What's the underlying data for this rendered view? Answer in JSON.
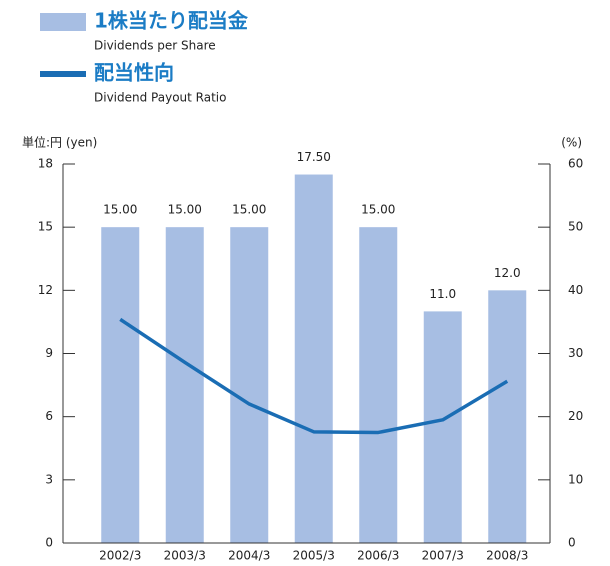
{
  "chart_data": {
    "type": "bar",
    "categories": [
      "2002/3",
      "2003/3",
      "2004/3",
      "2005/3",
      "2006/3",
      "2007/3",
      "2008/3"
    ],
    "series": [
      {
        "name": "1株当たり配当金",
        "subtitle": "Dividends per Share",
        "type": "bar",
        "color": "#a7bee3",
        "values": [
          15,
          15,
          15,
          17.5,
          15,
          11,
          12
        ],
        "value_labels": [
          "15.00",
          "15.00",
          "15.00",
          "17.50",
          "15.00",
          "11.0",
          "12.0"
        ]
      },
      {
        "name": "配当性向",
        "subtitle": "Dividend Payout Ratio",
        "type": "line",
        "color": "#1a6db4",
        "axis": "y2",
        "values": [
          35.4,
          28.6,
          22.0,
          17.6,
          17.5,
          19.5,
          25.6
        ]
      }
    ],
    "ylabel": "単位:円 (yen)",
    "y2label": "(%)",
    "ylim": [
      0,
      18
    ],
    "yticks": [
      0,
      3,
      6,
      9,
      12,
      15,
      18
    ],
    "y2lim": [
      0,
      60
    ],
    "y2ticks": [
      0,
      10,
      20,
      30,
      40,
      50,
      60
    ],
    "grid": false,
    "legend": "top-left"
  }
}
